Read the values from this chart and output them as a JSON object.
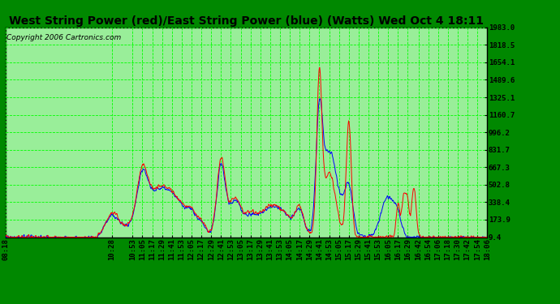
{
  "title": "West String Power (red)/East String Power (blue) (Watts) Wed Oct 4 18:11",
  "copyright": "Copyright 2006 Cartronics.com",
  "bg_color": "#008800",
  "plot_bg_color": "#99EE99",
  "grid_color": "#00FF00",
  "line_color_west": "red",
  "line_color_east": "blue",
  "yticks": [
    9.4,
    173.9,
    338.4,
    502.8,
    667.3,
    831.7,
    996.2,
    1160.7,
    1325.1,
    1489.6,
    1654.1,
    1818.5,
    1983.0
  ],
  "ylim": [
    9.4,
    1983.0
  ],
  "xtick_labels": [
    "08:18",
    "10:28",
    "10:53",
    "11:05",
    "11:17",
    "11:29",
    "11:41",
    "11:53",
    "12:05",
    "12:17",
    "12:29",
    "12:41",
    "12:53",
    "13:05",
    "13:17",
    "13:29",
    "13:41",
    "13:53",
    "14:05",
    "14:17",
    "14:29",
    "14:41",
    "14:53",
    "15:05",
    "15:17",
    "15:29",
    "15:41",
    "15:53",
    "16:05",
    "16:17",
    "16:29",
    "16:42",
    "16:54",
    "17:06",
    "17:18",
    "17:30",
    "17:42",
    "17:54",
    "18:06"
  ],
  "title_fontsize": 10,
  "copyright_fontsize": 6.5,
  "tick_fontsize": 6.5
}
